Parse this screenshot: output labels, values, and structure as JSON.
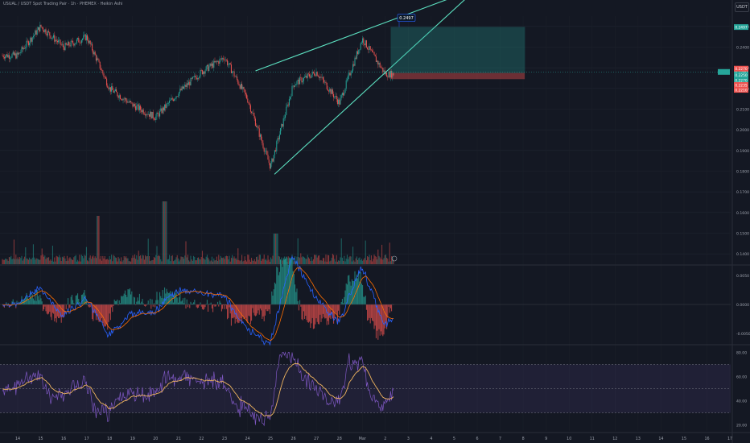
{
  "header": {
    "title": "USUAL / USDT Spot Trading Pair · 1h · PHEMEX · Heikin Ashi",
    "currency": "USDT"
  },
  "colors": {
    "background": "#141823",
    "up": "#26a69a",
    "down": "#ef5350",
    "wedge": "#5ce0c0",
    "macd_line": "#2962ff",
    "signal_line": "#ff6d00",
    "rsi_line": "#7e57c2",
    "rsi_ma": "#f0b55f",
    "rsi_band": "#7e57c2"
  },
  "price_axis": {
    "ticks": [
      "0.2500",
      "0.2400",
      "0.2300",
      "0.2200",
      "0.2100",
      "0.2000",
      "0.1900",
      "0.1800",
      "0.1700",
      "0.1600",
      "0.1500",
      "0.1400"
    ],
    "current_price": "0.2280",
    "labels_right": [
      "0.2497",
      "0.2270",
      "0.2250",
      "0.2270",
      "0.2235",
      "0.2210"
    ]
  },
  "annotation": {
    "target_price": "0.2497"
  },
  "macd_axis": {
    "ticks": [
      "0.0050",
      "0.0000",
      "-0.0050"
    ]
  },
  "rsi_axis": {
    "ticks": [
      "80.00",
      "60.00",
      "40.00",
      "20.00"
    ]
  },
  "x_axis": {
    "labels": [
      "14",
      "15",
      "16",
      "17",
      "18",
      "19",
      "20",
      "21",
      "22",
      "23",
      "24",
      "25",
      "26",
      "27",
      "28",
      "Mar",
      "2",
      "3",
      "4",
      "5",
      "6",
      "7",
      "8",
      "9",
      "10",
      "11",
      "12",
      "13",
      "14",
      "15",
      "16",
      "17"
    ]
  },
  "chart_data": {
    "type": "candlestick",
    "symbol": "USUAL/USDT",
    "interval": "1h",
    "exchange": "PHEMEX",
    "style": "Heikin Ashi",
    "y_range": [
      0.135,
      0.255
    ],
    "price_path": [
      {
        "day": "Feb 14",
        "price": 0.236
      },
      {
        "day": "Feb 15",
        "price": 0.25
      },
      {
        "day": "Feb 16",
        "price": 0.24
      },
      {
        "day": "Feb 17",
        "price": 0.245
      },
      {
        "day": "Feb 18",
        "price": 0.22
      },
      {
        "day": "Feb 19",
        "price": 0.212
      },
      {
        "day": "Feb 20",
        "price": 0.206
      },
      {
        "day": "Feb 21",
        "price": 0.218
      },
      {
        "day": "Feb 22",
        "price": 0.228
      },
      {
        "day": "Feb 23",
        "price": 0.235
      },
      {
        "day": "Feb 24",
        "price": 0.215
      },
      {
        "day": "Feb 25",
        "price": 0.182
      },
      {
        "day": "Feb 26",
        "price": 0.222
      },
      {
        "day": "Feb 27",
        "price": 0.228
      },
      {
        "day": "Feb 28",
        "price": 0.213
      },
      {
        "day": "Mar 1",
        "price": 0.244
      },
      {
        "day": "Mar 2",
        "price": 0.227
      }
    ],
    "rising_wedge": {
      "upper": [
        {
          "day": "Feb 24",
          "price": 0.2285
        },
        {
          "day": "Mar 6",
          "price": 0.2685
        }
      ],
      "lower": [
        {
          "day": "Feb 25",
          "price": 0.1785
        },
        {
          "day": "Mar 6",
          "price": 0.2685
        }
      ]
    },
    "position": {
      "entry": 0.2275,
      "target": 0.2497,
      "stop": 0.2245,
      "from": "Mar 2",
      "to": "Mar 8"
    },
    "macd_range": [
      -0.0065,
      0.0065
    ],
    "rsi_range": [
      15,
      85
    ],
    "rsi_levels": [
      70,
      50,
      30
    ]
  }
}
